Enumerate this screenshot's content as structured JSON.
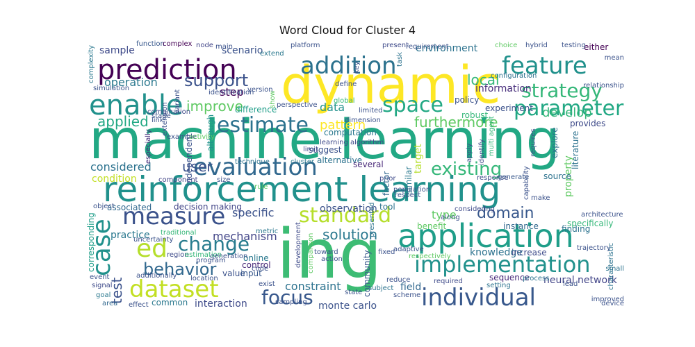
{
  "title": "Word Cloud for Cluster 4",
  "words": [
    {
      "text": "machine learning",
      "color": "#22a884"
    },
    {
      "text": "reinforcement learning",
      "color": "#21918c"
    },
    {
      "text": "ing",
      "color": "#3dbc74"
    },
    {
      "text": "dynamic",
      "color": "#fde725"
    },
    {
      "text": "prediction",
      "color": "#440154"
    },
    {
      "text": "addition",
      "color": "#2c728e"
    },
    {
      "text": "feature",
      "color": "#21918c"
    },
    {
      "text": "strategy",
      "color": "#35b779"
    },
    {
      "text": "parameter",
      "color": "#22a884"
    },
    {
      "text": "enable",
      "color": "#21918c"
    },
    {
      "text": "support",
      "color": "#3b528b"
    },
    {
      "text": "operation",
      "color": "#2a788e"
    },
    {
      "text": "local",
      "color": "#35b779"
    },
    {
      "text": "information",
      "color": "#472d7b"
    },
    {
      "text": "space",
      "color": "#22a884"
    },
    {
      "text": "improve",
      "color": "#5ec962"
    },
    {
      "text": "step",
      "color": "#440154"
    },
    {
      "text": "applied",
      "color": "#22a884"
    },
    {
      "text": "estimate",
      "color": "#2c728e"
    },
    {
      "text": "furthermore",
      "color": "#5ec962"
    },
    {
      "text": "develop",
      "color": "#35b779"
    },
    {
      "text": "evaluation",
      "color": "#31688e"
    },
    {
      "text": "existing",
      "color": "#35b779"
    },
    {
      "text": "considered",
      "color": "#2c728e"
    },
    {
      "text": "user",
      "color": "#3b528b"
    },
    {
      "text": "measure",
      "color": "#3b528b"
    },
    {
      "text": "standard",
      "color": "#b5de2b"
    },
    {
      "text": "domain",
      "color": "#38588c"
    },
    {
      "text": "case",
      "color": "#21918c"
    },
    {
      "text": "ed",
      "color": "#b5de2b"
    },
    {
      "text": "change",
      "color": "#287c8e"
    },
    {
      "text": "application",
      "color": "#1f9e89"
    },
    {
      "text": "implementation",
      "color": "#21918c"
    },
    {
      "text": "behavior",
      "color": "#31688e"
    },
    {
      "text": "dataset",
      "color": "#c2df23"
    },
    {
      "text": "test",
      "color": "#3b528b"
    },
    {
      "text": "focus",
      "color": "#38588c"
    },
    {
      "text": "individual",
      "color": "#38588c"
    },
    {
      "text": "solution",
      "color": "#2a788e"
    },
    {
      "text": "specific",
      "color": "#3b528b"
    },
    {
      "text": "mechanism",
      "color": "#414487"
    },
    {
      "text": "constraint",
      "color": "#2c728e"
    },
    {
      "text": "interaction",
      "color": "#3e4a89"
    },
    {
      "text": "common",
      "color": "#2a788e"
    },
    {
      "text": "monte carlo",
      "color": "#3b528b"
    },
    {
      "text": "sample",
      "color": "#3e4a89"
    },
    {
      "text": "scenario",
      "color": "#3b528b"
    },
    {
      "text": "environment",
      "color": "#2c728e"
    },
    {
      "text": "data",
      "color": "#21918c"
    },
    {
      "text": "pattern",
      "color": "#fde725"
    },
    {
      "text": "knowledge",
      "color": "#2c728e"
    },
    {
      "text": "practice",
      "color": "#2a788e"
    },
    {
      "text": "type",
      "color": "#5ec962"
    },
    {
      "text": "neural network",
      "color": "#414487"
    },
    {
      "text": "target",
      "color": "#b5de2b"
    },
    {
      "text": "property",
      "color": "#5ec962"
    },
    {
      "text": "experiment",
      "color": "#3b528b"
    },
    {
      "text": "either",
      "color": "#440154"
    },
    {
      "text": "increase",
      "color": "#3e4a89"
    },
    {
      "text": "sequence",
      "color": "#482878"
    },
    {
      "text": "instance",
      "color": "#31688e"
    },
    {
      "text": "finding",
      "color": "#2c728e"
    },
    {
      "text": "specifically",
      "color": "#35b779"
    },
    {
      "text": "field",
      "color": "#31688e"
    },
    {
      "text": "condition",
      "color": "#c2df23"
    },
    {
      "text": "associated",
      "color": "#31688e"
    },
    {
      "text": "decision making",
      "color": "#414487"
    },
    {
      "text": "traditional",
      "color": "#35b779"
    },
    {
      "text": "online",
      "color": "#2a788e"
    },
    {
      "text": "control",
      "color": "#482878"
    },
    {
      "text": "value",
      "color": "#3b528b"
    },
    {
      "text": "input",
      "color": "#38588c"
    },
    {
      "text": "code",
      "color": "#3b528b"
    },
    {
      "text": "combination",
      "color": "#3e4a89"
    },
    {
      "text": "component",
      "color": "#414487"
    },
    {
      "text": "independent",
      "color": "#3b528b"
    },
    {
      "text": "especially",
      "color": "#472d7b"
    },
    {
      "text": "although",
      "color": "#21918c"
    },
    {
      "text": "technique",
      "color": "#2c728e"
    },
    {
      "text": "cluster",
      "color": "#2a788e"
    },
    {
      "text": "suggest",
      "color": "#3b528b"
    },
    {
      "text": "alternative",
      "color": "#2c728e"
    },
    {
      "text": "computation",
      "color": "#2a788e"
    },
    {
      "text": "several",
      "color": "#482878"
    },
    {
      "text": "prior",
      "color": "#3e4a89"
    },
    {
      "text": "limit",
      "color": "#3e4a89"
    },
    {
      "text": "presented",
      "color": "#2c728e"
    },
    {
      "text": "observation",
      "color": "#3b528b"
    },
    {
      "text": "tool",
      "color": "#2c728e"
    },
    {
      "text": "considering",
      "color": "#3e4a89"
    },
    {
      "text": "along",
      "color": "#3b528b"
    },
    {
      "text": "benefit",
      "color": "#5ec962"
    },
    {
      "text": "response",
      "color": "#3e4a89"
    },
    {
      "text": "generate",
      "color": "#38588c"
    },
    {
      "text": "source",
      "color": "#2c728e"
    },
    {
      "text": "similar",
      "color": "#2a788e"
    },
    {
      "text": "factor",
      "color": "#31688e"
    },
    {
      "text": "policy",
      "color": "#3b528b"
    },
    {
      "text": "robust",
      "color": "#35b779"
    },
    {
      "text": "global",
      "color": "#35b779"
    },
    {
      "text": "limited",
      "color": "#3b528b"
    },
    {
      "text": "difference",
      "color": "#1f9e89"
    },
    {
      "text": "perspective",
      "color": "#3b528b"
    },
    {
      "text": "show",
      "color": "#5ec962"
    },
    {
      "text": "function",
      "color": "#38588c"
    },
    {
      "text": "complex",
      "color": "#440154"
    },
    {
      "text": "node",
      "color": "#414487"
    },
    {
      "text": "platform",
      "color": "#3b528b"
    },
    {
      "text": "extend",
      "color": "#2a788e"
    },
    {
      "text": "present",
      "color": "#3e4a89"
    },
    {
      "text": "task",
      "color": "#2c728e"
    },
    {
      "text": "mean",
      "color": "#3b528b"
    },
    {
      "text": "simulation",
      "color": "#3b528b"
    },
    {
      "text": "complexity",
      "color": "#2a788e"
    },
    {
      "text": "provides",
      "color": "#3e4a89"
    },
    {
      "text": "explore",
      "color": "#2c728e"
    },
    {
      "text": "literature",
      "color": "#2c728e"
    },
    {
      "text": "requires",
      "color": "#3b528b"
    },
    {
      "text": "identify",
      "color": "#3e4a89"
    },
    {
      "text": "apply",
      "color": "#3b528b"
    },
    {
      "text": "multi agent",
      "color": "#35b779"
    },
    {
      "text": "corresponding",
      "color": "#1f9e89"
    },
    {
      "text": "event",
      "color": "#3b528b"
    },
    {
      "text": "signal",
      "color": "#3e4a89"
    },
    {
      "text": "goal",
      "color": "#2a788e"
    },
    {
      "text": "area",
      "color": "#31688e"
    },
    {
      "text": "effect",
      "color": "#3b528b"
    },
    {
      "text": "region",
      "color": "#3e4a89"
    },
    {
      "text": "estimation",
      "color": "#35b779"
    },
    {
      "text": "location",
      "color": "#3b528b"
    },
    {
      "text": "development",
      "color": "#3e4a89"
    },
    {
      "text": "comparison",
      "color": "#5ec962"
    },
    {
      "text": "community",
      "color": "#38588c"
    },
    {
      "text": "reduce",
      "color": "#3b528b"
    },
    {
      "text": "scheme",
      "color": "#3b528b"
    },
    {
      "text": "required",
      "color": "#3e4a89"
    },
    {
      "text": "setting",
      "color": "#2c728e"
    },
    {
      "text": "lead",
      "color": "#3b528b"
    },
    {
      "text": "small",
      "color": "#2c728e"
    },
    {
      "text": "characteristic",
      "color": "#2c728e"
    },
    {
      "text": "metric",
      "color": "#2a788e"
    },
    {
      "text": "subject",
      "color": "#2c728e"
    },
    {
      "text": "adaptive",
      "color": "#3b528b"
    },
    {
      "text": "process",
      "color": "#2c728e"
    },
    {
      "text": "respectively",
      "color": "#5ec962"
    },
    {
      "text": "identification",
      "color": "#3b528b"
    },
    {
      "text": "version",
      "color": "#3b528b"
    },
    {
      "text": "define",
      "color": "#3b528b"
    },
    {
      "text": "key",
      "color": "#3b528b"
    },
    {
      "text": "requirement",
      "color": "#3b528b"
    },
    {
      "text": "choice",
      "color": "#5ec962"
    },
    {
      "text": "hybrid",
      "color": "#3b528b"
    },
    {
      "text": "testing",
      "color": "#3b528b"
    },
    {
      "text": "configuration",
      "color": "#2c728e"
    },
    {
      "text": "relationship",
      "color": "#3b528b"
    },
    {
      "text": "learning algorithm",
      "color": "#3e4a89"
    },
    {
      "text": "population",
      "color": "#3b528b"
    },
    {
      "text": "respect",
      "color": "#3b528b"
    },
    {
      "text": "capability",
      "color": "#3b528b"
    },
    {
      "text": "make",
      "color": "#3b528b"
    },
    {
      "text": "architecture",
      "color": "#3b528b"
    },
    {
      "text": "trajectory",
      "color": "#3b528b"
    },
    {
      "text": "object",
      "color": "#3b528b"
    },
    {
      "text": "program",
      "color": "#3b528b"
    },
    {
      "text": "generation",
      "color": "#3b528b"
    },
    {
      "text": "additionally",
      "color": "#3b528b"
    },
    {
      "text": "uncertainty",
      "color": "#3b528b"
    },
    {
      "text": "toward",
      "color": "#3b528b"
    },
    {
      "text": "action",
      "color": "#3b528b"
    },
    {
      "text": "improved",
      "color": "#3b528b"
    },
    {
      "text": "exist",
      "color": "#3b528b"
    },
    {
      "text": "sampling",
      "color": "#3b528b"
    },
    {
      "text": "dimension",
      "color": "#3b528b"
    },
    {
      "text": "main",
      "color": "#3b528b"
    },
    {
      "text": "state",
      "color": "#3b528b"
    },
    {
      "text": "fixed",
      "color": "#3b528b"
    },
    {
      "text": "rule",
      "color": "#5ec962"
    },
    {
      "text": "size",
      "color": "#3b528b"
    },
    {
      "text": "link",
      "color": "#3b528b"
    },
    {
      "text": "stage",
      "color": "#3b528b"
    },
    {
      "text": "example",
      "color": "#3b528b"
    },
    {
      "text": "extension",
      "color": "#3b528b"
    },
    {
      "text": "activity",
      "color": "#5ec962"
    },
    {
      "text": "variant",
      "color": "#3b528b"
    },
    {
      "text": "device",
      "color": "#3b528b"
    },
    {
      "text": "level",
      "color": "#3b528b"
    }
  ]
}
